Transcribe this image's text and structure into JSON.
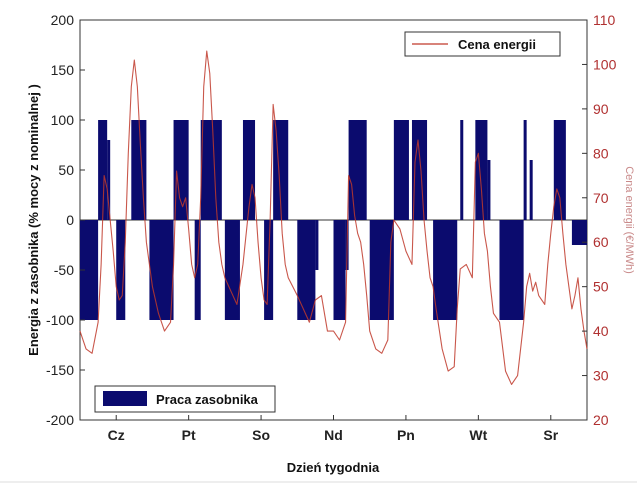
{
  "chart_data": {
    "type": "bar",
    "xlabel": "Dzień tygodnia",
    "ylabel": "Energia z zasobnika (% mocy z nominalnej )",
    "y2label": "Cena energii (€/MWh)",
    "ylim": [
      -200,
      200
    ],
    "y2lim": [
      20,
      110
    ],
    "xlim": [
      0,
      168
    ],
    "yticks": [
      -200,
      -150,
      -100,
      -50,
      0,
      50,
      100,
      150,
      200
    ],
    "y2ticks": [
      20,
      30,
      40,
      50,
      60,
      70,
      80,
      90,
      100,
      110
    ],
    "categories": [
      "Cz",
      "Pt",
      "So",
      "Nd",
      "Pn",
      "Wt",
      "Sr"
    ],
    "category_positions": [
      12,
      36,
      60,
      84,
      108,
      132,
      156
    ],
    "grid": false,
    "legend_bar": {
      "label": "Praca zasobnika",
      "position": "bottom-left"
    },
    "legend_line": {
      "label": "Cena energii",
      "position": "top-right"
    },
    "colors": {
      "bars": "#0b0b6e",
      "price": "#c0392b",
      "right_axis": "#b03030"
    },
    "series": [
      {
        "name": "Praca zasobnika",
        "kind": "bar",
        "bars": [
          {
            "x0": 0,
            "x1": 6,
            "value": -100
          },
          {
            "x0": 6,
            "x1": 9,
            "value": 100
          },
          {
            "x0": 9,
            "x1": 10,
            "value": 80
          },
          {
            "x0": 12,
            "x1": 15,
            "value": -100
          },
          {
            "x0": 17,
            "x1": 22,
            "value": 100
          },
          {
            "x0": 23,
            "x1": 31,
            "value": -100
          },
          {
            "x0": 31,
            "x1": 36,
            "value": 100
          },
          {
            "x0": 38,
            "x1": 40,
            "value": -100
          },
          {
            "x0": 40,
            "x1": 47,
            "value": 100
          },
          {
            "x0": 48,
            "x1": 53,
            "value": -100
          },
          {
            "x0": 54,
            "x1": 58,
            "value": 100
          },
          {
            "x0": 61,
            "x1": 64,
            "value": -100
          },
          {
            "x0": 64,
            "x1": 69,
            "value": 100
          },
          {
            "x0": 72,
            "x1": 78,
            "value": -100
          },
          {
            "x0": 78,
            "x1": 79,
            "value": -50
          },
          {
            "x0": 84,
            "x1": 88,
            "value": -100
          },
          {
            "x0": 88,
            "x1": 89,
            "value": -50
          },
          {
            "x0": 89,
            "x1": 95,
            "value": 100
          },
          {
            "x0": 96,
            "x1": 104,
            "value": -100
          },
          {
            "x0": 104,
            "x1": 109,
            "value": 100
          },
          {
            "x0": 110,
            "x1": 115,
            "value": 100
          },
          {
            "x0": 117,
            "x1": 125,
            "value": -100
          },
          {
            "x0": 126,
            "x1": 127,
            "value": 100
          },
          {
            "x0": 131,
            "x1": 135,
            "value": 100
          },
          {
            "x0": 135,
            "x1": 136,
            "value": 60
          },
          {
            "x0": 139,
            "x1": 147,
            "value": -100
          },
          {
            "x0": 147,
            "x1": 148,
            "value": 100
          },
          {
            "x0": 149,
            "x1": 150,
            "value": 60
          },
          {
            "x0": 157,
            "x1": 161,
            "value": 100
          },
          {
            "x0": 163,
            "x1": 168,
            "value": -25
          }
        ]
      },
      {
        "name": "Cena energii",
        "kind": "line",
        "axis": "right",
        "points": [
          [
            0,
            40
          ],
          [
            2,
            36
          ],
          [
            4,
            35
          ],
          [
            6,
            42
          ],
          [
            7,
            55
          ],
          [
            8,
            75
          ],
          [
            9,
            72
          ],
          [
            10,
            65
          ],
          [
            11,
            58
          ],
          [
            12,
            50
          ],
          [
            13,
            47
          ],
          [
            14,
            48
          ],
          [
            15,
            60
          ],
          [
            16,
            80
          ],
          [
            17,
            95
          ],
          [
            18,
            101
          ],
          [
            19,
            95
          ],
          [
            20,
            82
          ],
          [
            21,
            70
          ],
          [
            22,
            60
          ],
          [
            24,
            50
          ],
          [
            26,
            44
          ],
          [
            28,
            40
          ],
          [
            30,
            42
          ],
          [
            31,
            55
          ],
          [
            32,
            76
          ],
          [
            33,
            70
          ],
          [
            34,
            68
          ],
          [
            35,
            70
          ],
          [
            36,
            63
          ],
          [
            37,
            55
          ],
          [
            38,
            52
          ],
          [
            39,
            55
          ],
          [
            40,
            70
          ],
          [
            41,
            95
          ],
          [
            42,
            103
          ],
          [
            43,
            98
          ],
          [
            44,
            85
          ],
          [
            45,
            70
          ],
          [
            46,
            60
          ],
          [
            47,
            55
          ],
          [
            48,
            52
          ],
          [
            50,
            49
          ],
          [
            52,
            46
          ],
          [
            54,
            55
          ],
          [
            56,
            68
          ],
          [
            57,
            73
          ],
          [
            58,
            70
          ],
          [
            59,
            60
          ],
          [
            60,
            52
          ],
          [
            61,
            47
          ],
          [
            62,
            46
          ],
          [
            63,
            65
          ],
          [
            64,
            91
          ],
          [
            65,
            85
          ],
          [
            66,
            75
          ],
          [
            67,
            62
          ],
          [
            68,
            55
          ],
          [
            69,
            52
          ],
          [
            72,
            48
          ],
          [
            74,
            45
          ],
          [
            76,
            42
          ],
          [
            78,
            47
          ],
          [
            80,
            48
          ],
          [
            82,
            40
          ],
          [
            84,
            40
          ],
          [
            86,
            38
          ],
          [
            88,
            42
          ],
          [
            89,
            75
          ],
          [
            90,
            73
          ],
          [
            91,
            66
          ],
          [
            92,
            62
          ],
          [
            93,
            60
          ],
          [
            94,
            55
          ],
          [
            95,
            48
          ],
          [
            96,
            40
          ],
          [
            98,
            36
          ],
          [
            100,
            35
          ],
          [
            102,
            38
          ],
          [
            103,
            60
          ],
          [
            104,
            65
          ],
          [
            106,
            63
          ],
          [
            108,
            58
          ],
          [
            110,
            55
          ],
          [
            111,
            78
          ],
          [
            112,
            83
          ],
          [
            113,
            76
          ],
          [
            114,
            65
          ],
          [
            115,
            58
          ],
          [
            116,
            52
          ],
          [
            117,
            50
          ],
          [
            118,
            45
          ],
          [
            120,
            36
          ],
          [
            122,
            31
          ],
          [
            124,
            32
          ],
          [
            125,
            45
          ],
          [
            126,
            54
          ],
          [
            128,
            55
          ],
          [
            130,
            52
          ],
          [
            131,
            78
          ],
          [
            132,
            80
          ],
          [
            133,
            72
          ],
          [
            134,
            62
          ],
          [
            135,
            58
          ],
          [
            136,
            50
          ],
          [
            137,
            44
          ],
          [
            139,
            42
          ],
          [
            141,
            31
          ],
          [
            143,
            28
          ],
          [
            145,
            30
          ],
          [
            147,
            42
          ],
          [
            148,
            50
          ],
          [
            149,
            53
          ],
          [
            150,
            49
          ],
          [
            151,
            51
          ],
          [
            152,
            48
          ],
          [
            154,
            46
          ],
          [
            155,
            55
          ],
          [
            156,
            62
          ],
          [
            157,
            68
          ],
          [
            158,
            72
          ],
          [
            159,
            70
          ],
          [
            160,
            62
          ],
          [
            161,
            55
          ],
          [
            162,
            50
          ],
          [
            163,
            45
          ],
          [
            164,
            48
          ],
          [
            165,
            52
          ],
          [
            166,
            45
          ],
          [
            167,
            40
          ],
          [
            168,
            36
          ]
        ]
      }
    ]
  }
}
